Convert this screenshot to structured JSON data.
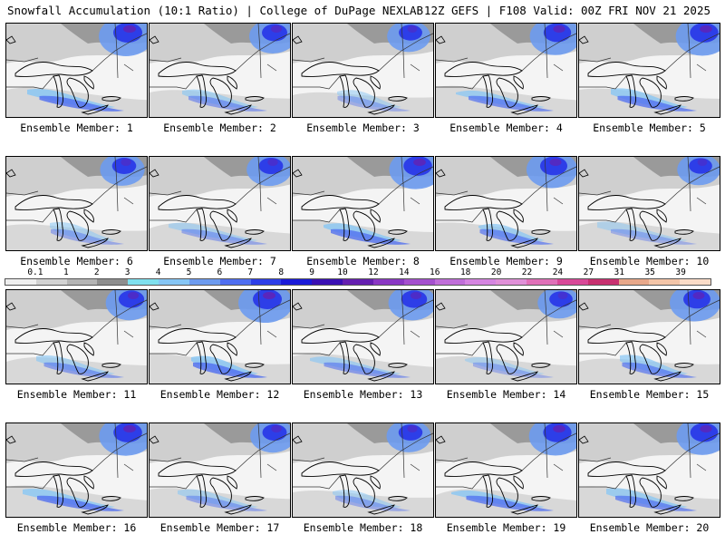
{
  "header": {
    "title": "Snowfall Accumulation (10:1 Ratio) | College of DuPage NEXLAB",
    "run_info": "12Z GEFS | F108 Valid: 00Z FRI NOV 21 2025"
  },
  "legend": {
    "labels": [
      "0.1",
      "1",
      "2",
      "3",
      "4",
      "5",
      "6",
      "7",
      "8",
      "9",
      "10",
      "12",
      "14",
      "16",
      "18",
      "20",
      "22",
      "24",
      "27",
      "31",
      "35",
      "39"
    ],
    "colors": [
      "#eeeeee",
      "#d2d2d2",
      "#b4b4b4",
      "#8e8e8e",
      "#7fe0ee",
      "#86c6f5",
      "#6d9bef",
      "#4f6ef0",
      "#2d3ee8",
      "#1a1ad8",
      "#3a10b4",
      "#6520b0",
      "#8a38c4",
      "#a550cf",
      "#c06ed9",
      "#d585e1",
      "#e090d8",
      "#e070b8",
      "#d84898",
      "#c83070",
      "#e8a88a",
      "#f3c5a8",
      "#fadcc8"
    ]
  },
  "panels": [
    {
      "label": "Ensemble Member: 1"
    },
    {
      "label": "Ensemble Member: 2"
    },
    {
      "label": "Ensemble Member: 3"
    },
    {
      "label": "Ensemble Member: 4"
    },
    {
      "label": "Ensemble Member: 5"
    },
    {
      "label": "Ensemble Member: 6"
    },
    {
      "label": "Ensemble Member: 7"
    },
    {
      "label": "Ensemble Member: 8"
    },
    {
      "label": "Ensemble Member: 9"
    },
    {
      "label": "Ensemble Member: 10"
    },
    {
      "label": "Ensemble Member: 11"
    },
    {
      "label": "Ensemble Member: 12"
    },
    {
      "label": "Ensemble Member: 13"
    },
    {
      "label": "Ensemble Member: 14"
    },
    {
      "label": "Ensemble Member: 15"
    },
    {
      "label": "Ensemble Member: 16"
    },
    {
      "label": "Ensemble Member: 17"
    },
    {
      "label": "Ensemble Member: 18"
    },
    {
      "label": "Ensemble Member: 19"
    },
    {
      "label": "Ensemble Member: 20"
    }
  ]
}
